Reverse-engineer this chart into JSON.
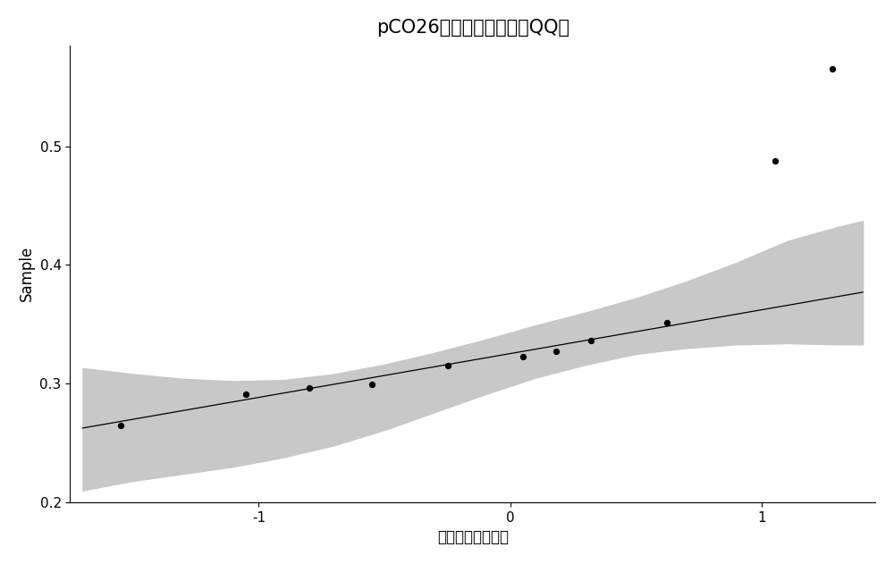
{
  "title": "pCO26相对荧光强度比值QQ图",
  "xlabel": "相对荧光强度比值",
  "ylabel": "Sample",
  "xlim": [
    -1.75,
    1.45
  ],
  "ylim": [
    0.2,
    0.585
  ],
  "yticks": [
    0.2,
    0.3,
    0.4,
    0.5
  ],
  "xticks": [
    -1,
    0,
    1
  ],
  "background_color": "#ffffff",
  "band_color": "#c8c8c8",
  "line_color": "#000000",
  "point_color": "#000000",
  "sample_quantiles": [
    0.265,
    0.291,
    0.296,
    0.299,
    0.315,
    0.323,
    0.327,
    0.336,
    0.351,
    0.488,
    0.565
  ],
  "theoretical_quantiles": [
    -1.55,
    -1.05,
    -0.8,
    -0.55,
    -0.25,
    0.05,
    0.18,
    0.32,
    0.62,
    1.05,
    1.28
  ],
  "line_x": [
    -1.7,
    1.4
  ],
  "line_y": [
    0.2625,
    0.377
  ],
  "band_x": [
    -1.7,
    -1.5,
    -1.3,
    -1.1,
    -0.9,
    -0.7,
    -0.5,
    -0.3,
    -0.1,
    0.1,
    0.3,
    0.5,
    0.7,
    0.9,
    1.1,
    1.3,
    1.4
  ],
  "band_upper": [
    0.313,
    0.308,
    0.304,
    0.302,
    0.303,
    0.308,
    0.316,
    0.326,
    0.337,
    0.349,
    0.36,
    0.372,
    0.386,
    0.402,
    0.42,
    0.432,
    0.437
  ],
  "band_lower": [
    0.21,
    0.218,
    0.224,
    0.23,
    0.238,
    0.248,
    0.261,
    0.276,
    0.291,
    0.305,
    0.316,
    0.325,
    0.33,
    0.333,
    0.334,
    0.333,
    0.333
  ],
  "title_fontsize": 15,
  "axis_fontsize": 12,
  "tick_fontsize": 11,
  "point_size": 18
}
